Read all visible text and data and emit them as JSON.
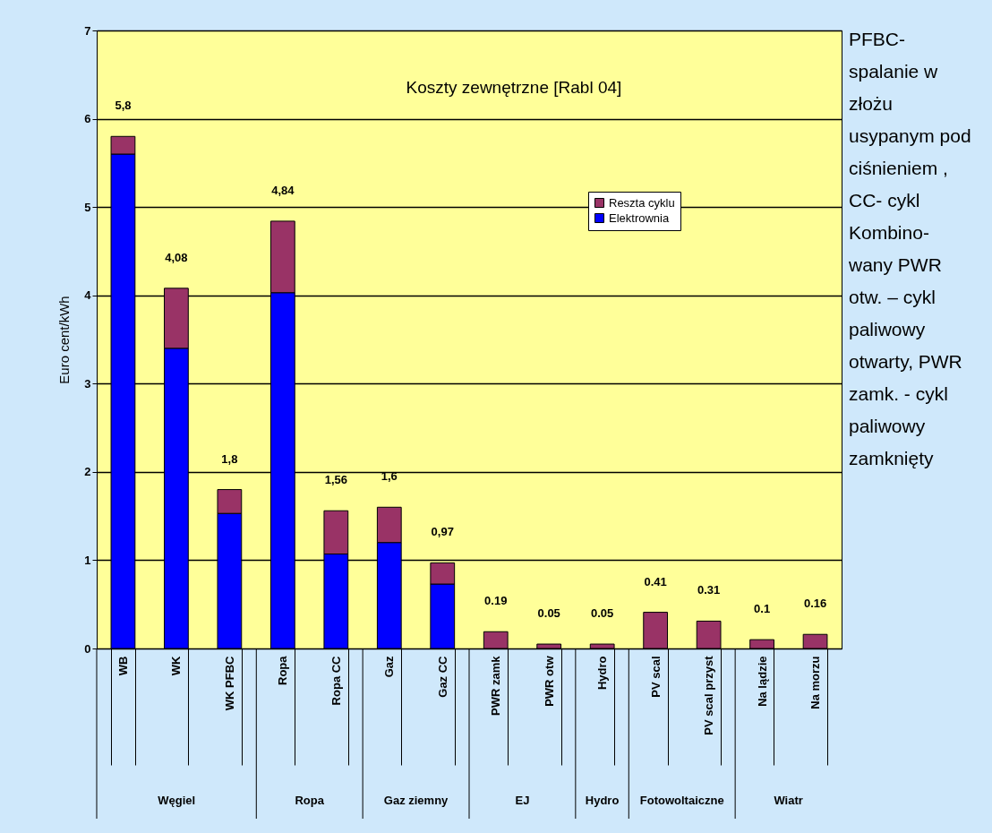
{
  "chart_data": {
    "type": "bar",
    "stacked": true,
    "title": "Koszty zewnętrzne [Rabl 04]",
    "ylabel": "Euro cent/kWh",
    "categories": [
      "WB",
      "WK",
      "WK PFBC",
      "Ropa",
      "Ropa CC",
      "Gaz",
      "Gaz CC",
      "PWR zamk",
      "PWR otw",
      "Hydro",
      "PV scal",
      "PV scal przyst",
      "Na lądzie",
      "Na morzu"
    ],
    "series": [
      {
        "name": "Elektrownia",
        "color": "#0000ff",
        "values": [
          5.6,
          3.4,
          1.53,
          4.03,
          1.07,
          1.2,
          0.73,
          0,
          0,
          0,
          0,
          0,
          0,
          0
        ]
      },
      {
        "name": "Reszta cyklu",
        "color": "#993366",
        "values": [
          0.2,
          0.68,
          0.27,
          0.81,
          0.49,
          0.4,
          0.24,
          0.19,
          0.05,
          0.05,
          0.41,
          0.31,
          0.1,
          0.16
        ]
      }
    ],
    "totals": [
      "5,8",
      "4,08",
      "1,8",
      "4,84",
      "1,56",
      "1,6",
      "0,97",
      "0.19",
      "0.05",
      "0.05",
      "0.41",
      "0.31",
      "0.1",
      "0.16"
    ],
    "ylim": [
      0,
      7
    ],
    "yticks": [
      0,
      1,
      2,
      3,
      4,
      5,
      6,
      7
    ],
    "grid": "y",
    "legend": "top right",
    "annotations": [
      "Węgiel",
      "Ropa",
      "Gaz ziemny",
      "EJ",
      "Hydro",
      "Fotowoltaiczne",
      "Wiatr",
      "PFBC- spalanie w złożu usypanym pod ciśnieniem , CC- cykl Kombino- wany PWR otw. – cykl paliwowy otwarty, PWR zamk. - cykl paliwowy zamknięty"
    ]
  }
}
